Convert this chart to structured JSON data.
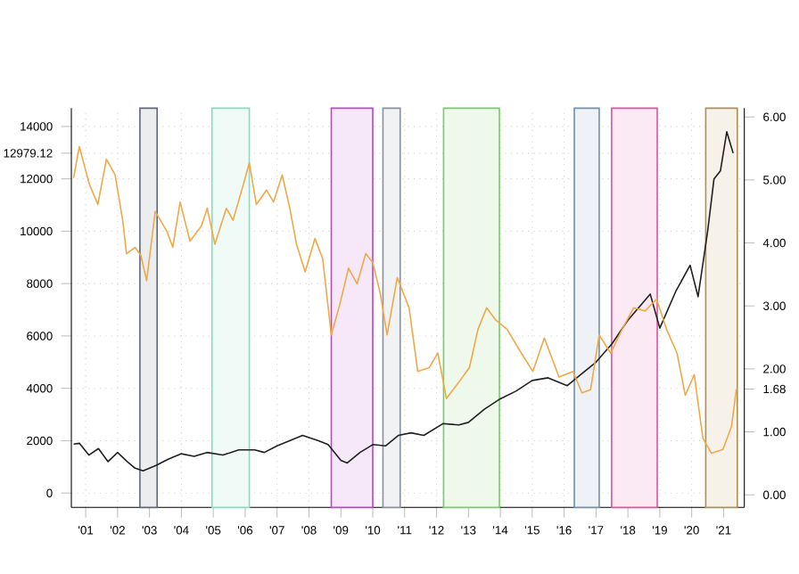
{
  "chart_data": {
    "type": "line",
    "xlim": [
      2000.55,
      2021.65
    ],
    "xticks": [
      {
        "value": 2001,
        "label": "'01"
      },
      {
        "value": 2002,
        "label": "'02"
      },
      {
        "value": 2003,
        "label": "'03"
      },
      {
        "value": 2004,
        "label": "'04"
      },
      {
        "value": 2005,
        "label": "'05"
      },
      {
        "value": 2006,
        "label": "'06"
      },
      {
        "value": 2007,
        "label": "'07"
      },
      {
        "value": 2008,
        "label": "'08"
      },
      {
        "value": 2009,
        "label": "'09"
      },
      {
        "value": 2010,
        "label": "'10"
      },
      {
        "value": 2011,
        "label": "'11"
      },
      {
        "value": 2012,
        "label": "'12"
      },
      {
        "value": 2013,
        "label": "'13"
      },
      {
        "value": 2014,
        "label": "'14"
      },
      {
        "value": 2015,
        "label": "'15"
      },
      {
        "value": 2016,
        "label": "'16"
      },
      {
        "value": 2017,
        "label": "'17"
      },
      {
        "value": 2018,
        "label": "'18"
      },
      {
        "value": 2019,
        "label": "'19"
      },
      {
        "value": 2020,
        "label": "'20"
      },
      {
        "value": 2021,
        "label": "'21"
      }
    ],
    "ylim": [
      -550,
      14700
    ],
    "yticks": [
      0,
      2000,
      4000,
      6000,
      8000,
      10000,
      12000,
      {
        "value": 12979.12,
        "label": "12979.12"
      },
      14000
    ],
    "y2lim": [
      -0.2,
      6.14
    ],
    "y2ticks": [
      {
        "value": 0,
        "label": "0.00"
      },
      {
        "value": 1,
        "label": "1.00"
      },
      {
        "value": 1.68,
        "label": "1.68"
      },
      {
        "value": 2,
        "label": "2.00"
      },
      {
        "value": 3,
        "label": "3.00"
      },
      {
        "value": 4,
        "label": "4.00"
      },
      {
        "value": 5,
        "label": "5.00"
      },
      {
        "value": 6,
        "label": "6.00"
      }
    ],
    "grid": true,
    "series": [
      {
        "color": "#f0a848",
        "axis": "y2",
        "x": [
          2000.62,
          2000.8,
          2001.11,
          2001.38,
          2001.65,
          2001.92,
          2002.16,
          2002.28,
          2002.55,
          2002.73,
          2002.91,
          2003.18,
          2003.55,
          2003.73,
          2003.96,
          2004.27,
          2004.63,
          2004.81,
          2005.05,
          2005.41,
          2005.62,
          2005.95,
          2006.13,
          2006.35,
          2006.67,
          2006.89,
          2007.16,
          2007.4,
          2007.61,
          2007.88,
          2008.19,
          2008.43,
          2008.7,
          2008.97,
          2009.24,
          2009.51,
          2009.78,
          2010.0,
          2010.23,
          2010.45,
          2010.77,
          2011.14,
          2011.41,
          2011.77,
          2012.04,
          2012.31,
          2012.67,
          2013.03,
          2013.3,
          2013.57,
          2013.85,
          2014.21,
          2014.66,
          2015.02,
          2015.38,
          2015.84,
          2016.28,
          2016.56,
          2016.83,
          2017.1,
          2017.46,
          2017.82,
          2018.18,
          2018.54,
          2018.9,
          2019.21,
          2019.54,
          2019.8,
          2020.08,
          2020.35,
          2020.62,
          2020.98,
          2021.25,
          2021.4
        ],
        "values": [
          5.03,
          5.53,
          4.94,
          4.61,
          5.33,
          5.08,
          4.36,
          3.83,
          3.93,
          3.8,
          3.4,
          4.5,
          4.18,
          3.93,
          4.65,
          4.03,
          4.27,
          4.55,
          3.98,
          4.55,
          4.36,
          4.94,
          5.27,
          4.61,
          4.84,
          4.65,
          5.08,
          4.55,
          3.98,
          3.54,
          4.07,
          3.75,
          2.54,
          3.03,
          3.6,
          3.35,
          3.83,
          3.69,
          3.21,
          2.54,
          3.45,
          2.97,
          1.96,
          2.02,
          2.25,
          1.53,
          1.77,
          2.02,
          2.63,
          2.97,
          2.78,
          2.63,
          2.25,
          1.96,
          2.49,
          1.87,
          1.96,
          1.62,
          1.67,
          2.54,
          2.25,
          2.63,
          2.97,
          2.92,
          3.11,
          2.63,
          2.25,
          1.58,
          1.91,
          0.9,
          0.66,
          0.72,
          1.09,
          1.68
        ]
      },
      {
        "color": "#202020",
        "axis": "y",
        "x": [
          2000.62,
          2000.8,
          2001.1,
          2001.4,
          2001.7,
          2002.0,
          2002.3,
          2002.55,
          2002.8,
          2003.2,
          2003.6,
          2004.0,
          2004.4,
          2004.8,
          2005.3,
          2005.8,
          2006.3,
          2006.6,
          2007.0,
          2007.8,
          2008.3,
          2008.6,
          2009.0,
          2009.2,
          2009.6,
          2010.0,
          2010.4,
          2010.8,
          2011.2,
          2011.6,
          2012.2,
          2012.7,
          2013.0,
          2013.5,
          2014.0,
          2014.5,
          2015.0,
          2015.5,
          2016.1,
          2016.5,
          2017.0,
          2017.5,
          2018.0,
          2018.7,
          2019.0,
          2019.5,
          2019.95,
          2020.2,
          2020.5,
          2020.7,
          2020.9,
          2021.1,
          2021.3
        ],
        "values": [
          1870,
          1900,
          1450,
          1700,
          1200,
          1550,
          1200,
          950,
          850,
          1050,
          1300,
          1500,
          1400,
          1550,
          1450,
          1650,
          1650,
          1550,
          1800,
          2200,
          2000,
          1850,
          1250,
          1150,
          1550,
          1850,
          1800,
          2200,
          2300,
          2200,
          2650,
          2600,
          2700,
          3200,
          3600,
          3900,
          4300,
          4400,
          4100,
          4500,
          5000,
          5700,
          6600,
          7600,
          6300,
          7700,
          8700,
          7500,
          10000,
          12000,
          12300,
          13800,
          12979.12
        ]
      }
    ],
    "bands": [
      {
        "axis": "x",
        "from": 2002.7,
        "to": 2003.24,
        "color": "#606878"
      },
      {
        "axis": "x",
        "from": 2004.96,
        "to": 2006.13,
        "color": "#7fe0c0"
      },
      {
        "axis": "x",
        "from": 2008.7,
        "to": 2010.0,
        "color": "#c040d0"
      },
      {
        "axis": "x",
        "from": 2010.32,
        "to": 2010.86,
        "color": "#8890a0"
      },
      {
        "axis": "x",
        "from": 2012.22,
        "to": 2013.97,
        "color": "#70d060"
      },
      {
        "axis": "x",
        "from": 2016.32,
        "to": 2017.1,
        "color": "#7090b0"
      },
      {
        "axis": "x",
        "from": 2017.49,
        "to": 2018.92,
        "color": "#e050a0"
      },
      {
        "axis": "x",
        "from": 2020.44,
        "to": 2021.43,
        "color": "#b09050"
      }
    ]
  }
}
